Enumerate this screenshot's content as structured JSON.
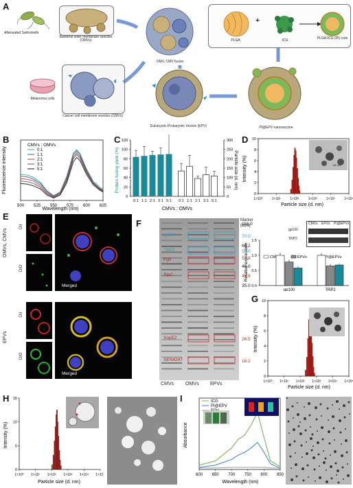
{
  "panels": {
    "A": "A",
    "B": "B",
    "C": "C",
    "D": "D",
    "E": "E",
    "F": "F",
    "G": "G",
    "H": "H",
    "I": "I"
  },
  "schematic": {
    "salmonella": "Attenuated Salmonella",
    "omv": "Bacterial outer membrane vesicles (OMVs)",
    "fusion": "OMV, CMV fusion",
    "plga": "PLGA",
    "plus": "+",
    "icg": "ICG",
    "core": "PLGA-ICG (PI) core",
    "melanoma": "Melanoma cells",
    "cmv": "Cancer cell membrane vesicles (CMVs)",
    "epv": "Eukaryotic-Prokaryotic Vesicle (EPV)",
    "vaccine": "PI@EPV nanovaccine"
  },
  "panel_b": {
    "legend_title": "CMVs : OMVs",
    "legend": [
      "0:1",
      "1:1",
      "2:1",
      "3:1",
      "5:1"
    ],
    "colors": [
      "#3aa8a8",
      "#3b5ca8",
      "#c0392b",
      "#555555",
      "#1a1a1a"
    ],
    "ylabel": "Fluorescence intensity",
    "xlabel": "Wavelength (nm)",
    "xticks": [
      "500",
      "525",
      "550",
      "575",
      "600",
      "625"
    ]
  },
  "panel_c": {
    "ylabel_left": "Protein fusing yield (%)",
    "ylabel_right": "Particle size (d. nm)",
    "xlabel": "CMVs : OMVs",
    "yticks_left": [
      "0",
      "20",
      "40",
      "60",
      "80",
      "100",
      "120"
    ],
    "yticks_right": [
      "0",
      "50",
      "100",
      "150",
      "200",
      "250",
      "300"
    ],
    "xticks": [
      "0:1",
      "1:1",
      "2:1",
      "3:1",
      "5:1",
      "0:1",
      "1:1",
      "2:1",
      "3:1",
      "5:1"
    ]
  },
  "panel_d": {
    "ylabel": "Intensity (%)",
    "xlabel": "Particle size (d. nm)",
    "yticks": [
      "0",
      "2",
      "4",
      "6",
      "8",
      "10"
    ],
    "xticks": [
      "1×10⁰",
      "1×10¹",
      "1×10²",
      "1×10³",
      "1×10⁴",
      "1×10⁵"
    ],
    "scalebar": "100 nm",
    "wb_cols": [
      "CMVs",
      "EPVs",
      "PI@EPVs"
    ],
    "wb_rows": [
      "gp100",
      "TRP2"
    ],
    "bar_ylabel": "Relative expression",
    "bar_yticks": [
      "0.0",
      "0.5",
      "1.0",
      "1.5"
    ],
    "bar_legend": [
      "CMVs",
      "EPVs",
      "PI@EPVs"
    ],
    "bar_groups": [
      "gp100",
      "TRP2"
    ]
  },
  "panel_e": {
    "group1": "OMVs, CMVs",
    "group2": "EPVs",
    "dil": "DiI",
    "dio": "DiO",
    "merged": "Merged"
  },
  "panel_f": {
    "marker_title": "Marker",
    "marker_unit": "(kDa)",
    "markers": [
      "116.0",
      "70.0",
      "66.2",
      "59.0",
      "52.9",
      "46.0",
      "42.9",
      "35.0",
      "26.5",
      "18.2"
    ],
    "proteins": [
      "gp100",
      "TRP2",
      "FljB",
      "SipC",
      "SopE2",
      "SEN4247"
    ],
    "lanes": [
      "CMVs",
      "OMVs",
      "EPVs"
    ]
  },
  "panel_g": {
    "ylabel": "Intensity (%)",
    "xlabel": "Particle size (d. nm)",
    "yticks": [
      "0",
      "2",
      "4",
      "6",
      "8",
      "10"
    ],
    "xticks": [
      "1×10⁰",
      "1×10¹",
      "1×10²",
      "1×10³",
      "1×10⁴",
      "1×10⁵"
    ]
  },
  "panel_h": {
    "ylabel": "Intensity (%)",
    "xlabel": "Particle size (d. nm)",
    "yticks": [
      "0",
      "5",
      "10",
      "15"
    ],
    "xticks": [
      "1×10⁰",
      "1×10¹",
      "1×10²",
      "1×10³",
      "1×10⁴",
      "1×10⁵"
    ]
  },
  "panel_i": {
    "legend": [
      "ICG",
      "PI@EPV",
      "EPV"
    ],
    "colors": [
      "#6ab04c",
      "#3a7bd5",
      "#999999"
    ],
    "ylabel": "Absorbance",
    "xlabel": "Wavelength (nm)",
    "xticks": [
      "600",
      "650",
      "700",
      "750",
      "800",
      "850"
    ]
  },
  "chart_data": [
    {
      "type": "line",
      "panel": "B",
      "ylabel": "Fluorescence intensity",
      "xlabel": "Wavelength (nm)",
      "xlim": [
        500,
        625
      ],
      "series": [
        {
          "name": "0:1",
          "x": [
            500,
            510,
            520,
            530,
            540,
            550,
            560,
            570,
            580,
            585,
            590,
            600,
            610,
            620,
            625
          ],
          "values": [
            0.43,
            0.42,
            0.38,
            0.3,
            0.16,
            0.08,
            0.14,
            0.4,
            0.78,
            0.84,
            0.78,
            0.52,
            0.32,
            0.22,
            0.18
          ]
        },
        {
          "name": "1:1",
          "x": [
            500,
            510,
            520,
            530,
            540,
            550,
            560,
            570,
            580,
            585,
            590,
            600,
            610,
            620,
            625
          ],
          "values": [
            0.4,
            0.39,
            0.35,
            0.28,
            0.15,
            0.07,
            0.13,
            0.38,
            0.76,
            0.82,
            0.76,
            0.5,
            0.3,
            0.2,
            0.17
          ]
        },
        {
          "name": "2:1",
          "x": [
            500,
            510,
            520,
            530,
            540,
            550,
            560,
            570,
            580,
            585,
            590,
            600,
            610,
            620,
            625
          ],
          "values": [
            0.36,
            0.35,
            0.32,
            0.25,
            0.13,
            0.06,
            0.12,
            0.35,
            0.72,
            0.79,
            0.73,
            0.48,
            0.29,
            0.19,
            0.16
          ]
        },
        {
          "name": "3:1",
          "x": [
            500,
            510,
            520,
            530,
            540,
            550,
            560,
            570,
            580,
            585,
            590,
            600,
            610,
            620,
            625
          ],
          "values": [
            0.32,
            0.31,
            0.28,
            0.22,
            0.11,
            0.05,
            0.1,
            0.32,
            0.69,
            0.76,
            0.7,
            0.46,
            0.28,
            0.18,
            0.15
          ]
        },
        {
          "name": "5:1",
          "x": [
            500,
            510,
            520,
            530,
            540,
            550,
            560,
            570,
            580,
            585,
            590,
            600,
            610,
            620,
            625
          ],
          "values": [
            0.28,
            0.27,
            0.24,
            0.19,
            0.09,
            0.04,
            0.09,
            0.29,
            0.64,
            0.71,
            0.66,
            0.43,
            0.26,
            0.17,
            0.14
          ]
        }
      ]
    },
    {
      "type": "bar",
      "panel": "C",
      "categories": [
        "0:1",
        "1:1",
        "2:1",
        "3:1",
        "5:1"
      ],
      "ylim_left": [
        0,
        120
      ],
      "ylim_right": [
        0,
        300
      ],
      "series": [
        {
          "name": "Protein fusing yield (%)",
          "values": [
            84,
            86,
            88,
            89,
            90
          ],
          "errors": [
            14,
            20,
            8,
            14,
            48
          ]
        },
        {
          "name": "Particle size (d. nm)",
          "values": [
            135,
            160,
            95,
            115,
            108
          ],
          "errors": [
            40,
            58,
            12,
            40,
            25
          ]
        }
      ]
    },
    {
      "type": "bar",
      "panel": "D histogram",
      "xscale": "log",
      "ylim": [
        0,
        10
      ],
      "x": [
        60,
        70,
        80,
        90,
        100,
        110,
        120,
        135,
        150,
        165,
        180
      ],
      "values": [
        0.8,
        2.5,
        4.8,
        7.0,
        8.3,
        7.8,
        6.5,
        4.6,
        2.8,
        1.4,
        0.5
      ]
    },
    {
      "type": "bar",
      "panel": "D relative expression",
      "categories": [
        "gp100",
        "TRP2"
      ],
      "ylim": [
        0,
        1.5
      ],
      "series": [
        {
          "name": "CMVs",
          "values": [
            1.0,
            1.0
          ],
          "errors": [
            0.1,
            0.08
          ]
        },
        {
          "name": "EPVs",
          "values": [
            0.78,
            0.65
          ],
          "errors": [
            0.08,
            0.07
          ]
        },
        {
          "name": "PI@EPVs",
          "values": [
            0.58,
            0.68
          ],
          "errors": [
            0.07,
            0.06
          ]
        }
      ]
    },
    {
      "type": "bar",
      "panel": "G",
      "xscale": "log",
      "ylim": [
        0,
        10
      ],
      "x": [
        200,
        240,
        280,
        320,
        360,
        400,
        450,
        500,
        560,
        620,
        700
      ],
      "values": [
        0.8,
        2.5,
        5.0,
        7.5,
        8.8,
        7.8,
        6.2,
        4.4,
        2.6,
        1.2,
        0.4
      ]
    },
    {
      "type": "bar",
      "panel": "H",
      "xscale": "log",
      "ylim": [
        0,
        15
      ],
      "x": [
        100,
        120,
        140,
        160,
        180,
        200,
        220,
        250,
        280,
        310,
        350
      ],
      "values": [
        1,
        3,
        6,
        9,
        11.5,
        12.5,
        10,
        7,
        4,
        2,
        0.8
      ]
    },
    {
      "type": "line",
      "panel": "I",
      "xlim": [
        600,
        850
      ],
      "xlabel": "Wavelength (nm)",
      "ylabel": "Absorbance",
      "series": [
        {
          "name": "ICG",
          "x": [
            600,
            650,
            700,
            720,
            740,
            760,
            780,
            800,
            820,
            850
          ],
          "values": [
            0.06,
            0.12,
            0.3,
            0.42,
            0.48,
            0.62,
            0.8,
            0.45,
            0.12,
            0.04
          ]
        },
        {
          "name": "PI@EPV",
          "x": [
            600,
            650,
            700,
            720,
            740,
            760,
            780,
            800,
            820,
            850
          ],
          "values": [
            0.03,
            0.06,
            0.14,
            0.2,
            0.24,
            0.3,
            0.38,
            0.24,
            0.08,
            0.02
          ]
        },
        {
          "name": "EPV",
          "x": [
            600,
            650,
            700,
            720,
            740,
            760,
            780,
            800,
            820,
            850
          ],
          "values": [
            0.02,
            0.02,
            0.03,
            0.03,
            0.03,
            0.03,
            0.03,
            0.03,
            0.02,
            0.02
          ]
        }
      ]
    }
  ]
}
